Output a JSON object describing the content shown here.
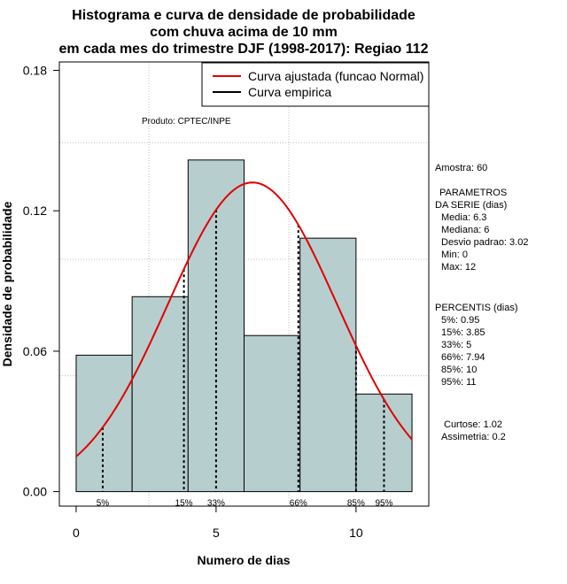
{
  "chart_data": {
    "type": "histogram",
    "title_lines": [
      "Histograma e curva de densidade de probabilidade",
      "com chuva acima de 10 mm",
      "em cada mes do trimestre DJF (1998-2017): Regiao 112"
    ],
    "xlabel": "Numero de dias",
    "ylabel": "Densidade de probabilidade",
    "xlim": [
      -0.6,
      12.6
    ],
    "ylim": [
      -0.0062,
      0.1836
    ],
    "xticks": [
      0,
      5,
      10
    ],
    "yticks": [
      0.0,
      0.06,
      0.12,
      0.18
    ],
    "ytick_labels": [
      "0.00",
      "0.06",
      "0.12",
      "0.18"
    ],
    "gridlines_x": [
      2.6,
      7.6
    ],
    "gridlines_y": [
      0.0495,
      0.0993,
      0.1491
    ],
    "bins": [
      {
        "x0": 0,
        "x1": 2,
        "density": 0.0583
      },
      {
        "x0": 2,
        "x1": 4,
        "density": 0.0833
      },
      {
        "x0": 4,
        "x1": 6,
        "density": 0.1417
      },
      {
        "x0": 6,
        "x1": 8,
        "density": 0.0667
      },
      {
        "x0": 8,
        "x1": 10,
        "density": 0.1083
      },
      {
        "x0": 10,
        "x1": 12,
        "density": 0.0417
      }
    ],
    "bar_color": "#b7cece",
    "curve_color": "#e00000",
    "normal_curve": {
      "mean": 6.3,
      "sd": 3.02,
      "x_range": [
        0,
        12
      ]
    },
    "percentile_markers": [
      {
        "label": "5%",
        "x": 0.95
      },
      {
        "label": "15%",
        "x": 3.85
      },
      {
        "label": "33%",
        "x": 5
      },
      {
        "label": "66%",
        "x": 7.94
      },
      {
        "label": "85%",
        "x": 10
      },
      {
        "label": "95%",
        "x": 11
      }
    ],
    "legend": [
      {
        "label": "Curva ajustada (funcao Normal)",
        "color": "#e00000"
      },
      {
        "label": "Curva empirica",
        "color": "#000000"
      }
    ],
    "legend_position": "top-right",
    "product_label": "Produto: CPTEC/INPE",
    "stats": {
      "amostra": "Amostra: 60",
      "param_title_1": "PARAMETROS",
      "param_title_2": "DA SERIE (dias)",
      "media": "Media: 6.3",
      "mediana": "Mediana: 6",
      "desvio": "Desvio padrao: 3.02",
      "min": "Min: 0",
      "max": "Max: 12",
      "percentis_title": "PERCENTIS (dias)",
      "p5": "5%: 0.95",
      "p15": "15%: 3.85",
      "p33": "33%: 5",
      "p66": "66%: 7.94",
      "p85": "85%: 10",
      "p95": "95%: 11",
      "curtose": "Curtose: 1.02",
      "assimetria": "Assimetria: 0.2"
    }
  }
}
